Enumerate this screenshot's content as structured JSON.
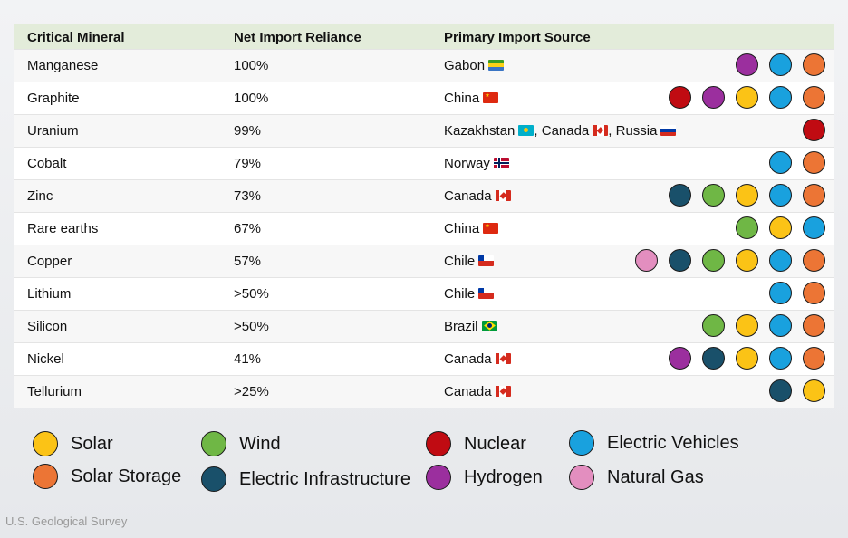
{
  "colors": {
    "Solar": "#fbc316",
    "Solar Storage": "#ec7535",
    "Wind": "#6fb745",
    "Electric Infrastructure": "#19506a",
    "Nuclear": "#c00b12",
    "Hydrogen": "#9b2f9e",
    "Electric Vehicles": "#19a1de",
    "Natural Gas": "#e38ebf"
  },
  "header": {
    "mineral": "Critical Mineral",
    "reliance": "Net Import Reliance",
    "source": "Primary Import Source"
  },
  "rows": [
    {
      "mineral": "Manganese",
      "reliance": "100%",
      "sources": [
        {
          "name": "Gabon",
          "flag": "gabon-flag",
          "sep": ""
        }
      ],
      "uses": [
        "Hydrogen",
        "Electric Vehicles",
        "Solar Storage"
      ]
    },
    {
      "mineral": "Graphite",
      "reliance": "100%",
      "sources": [
        {
          "name": "China",
          "flag": "china-flag",
          "sep": ""
        }
      ],
      "uses": [
        "Nuclear",
        "Hydrogen",
        "Solar",
        "Electric Vehicles",
        "Solar Storage"
      ]
    },
    {
      "mineral": "Uranium",
      "reliance": "99%",
      "sources": [
        {
          "name": "Kazakhstan",
          "flag": "kazakhstan-flag",
          "sep": ", "
        },
        {
          "name": "Canada",
          "flag": "canada-flag",
          "sep": ", "
        },
        {
          "name": "Russia",
          "flag": "russia-flag",
          "sep": ""
        }
      ],
      "uses": [
        "Nuclear"
      ]
    },
    {
      "mineral": "Cobalt",
      "reliance": "79%",
      "sources": [
        {
          "name": "Norway",
          "flag": "norway-flag",
          "sep": ""
        }
      ],
      "uses": [
        "Electric Vehicles",
        "Solar Storage"
      ]
    },
    {
      "mineral": "Zinc",
      "reliance": "73%",
      "sources": [
        {
          "name": "Canada",
          "flag": "canada-flag",
          "sep": ""
        }
      ],
      "uses": [
        "Electric Infrastructure",
        "Wind",
        "Solar",
        "Electric Vehicles",
        "Solar Storage"
      ]
    },
    {
      "mineral": "Rare earths",
      "reliance": "67%",
      "sources": [
        {
          "name": "China",
          "flag": "china-flag",
          "sep": ""
        }
      ],
      "uses": [
        "Wind",
        "Solar",
        "Electric Vehicles"
      ]
    },
    {
      "mineral": "Copper",
      "reliance": "57%",
      "sources": [
        {
          "name": "Chile",
          "flag": "chile-flag",
          "sep": ""
        }
      ],
      "uses": [
        "Natural Gas",
        "Electric Infrastructure",
        "Wind",
        "Solar",
        "Electric Vehicles",
        "Solar Storage"
      ]
    },
    {
      "mineral": "Lithium",
      "reliance": ">50%",
      "sources": [
        {
          "name": "Chile",
          "flag": "chile-flag",
          "sep": ""
        }
      ],
      "uses": [
        "Electric Vehicles",
        "Solar Storage"
      ]
    },
    {
      "mineral": "Silicon",
      "reliance": ">50%",
      "sources": [
        {
          "name": "Brazil",
          "flag": "brazil-flag",
          "sep": ""
        }
      ],
      "uses": [
        "Wind",
        "Solar",
        "Electric Vehicles",
        "Solar Storage"
      ]
    },
    {
      "mineral": "Nickel",
      "reliance": "41%",
      "sources": [
        {
          "name": "Canada",
          "flag": "canada-flag",
          "sep": ""
        }
      ],
      "uses": [
        "Hydrogen",
        "Electric Infrastructure",
        "Solar",
        "Electric Vehicles",
        "Solar Storage"
      ]
    },
    {
      "mineral": "Tellurium",
      "reliance": ">25%",
      "sources": [
        {
          "name": "Canada",
          "flag": "canada-flag",
          "sep": ""
        }
      ],
      "uses": [
        "Electric Infrastructure",
        "Solar"
      ]
    }
  ],
  "legend": [
    {
      "label": "Solar"
    },
    {
      "label": "Solar Storage"
    },
    {
      "label": "Wind"
    },
    {
      "label": "Electric Infrastructure"
    },
    {
      "label": "Nuclear"
    },
    {
      "label": "Hydrogen"
    },
    {
      "label": "Electric Vehicles"
    },
    {
      "label": "Natural Gas"
    }
  ],
  "source_note": "U.S. Geological Survey"
}
